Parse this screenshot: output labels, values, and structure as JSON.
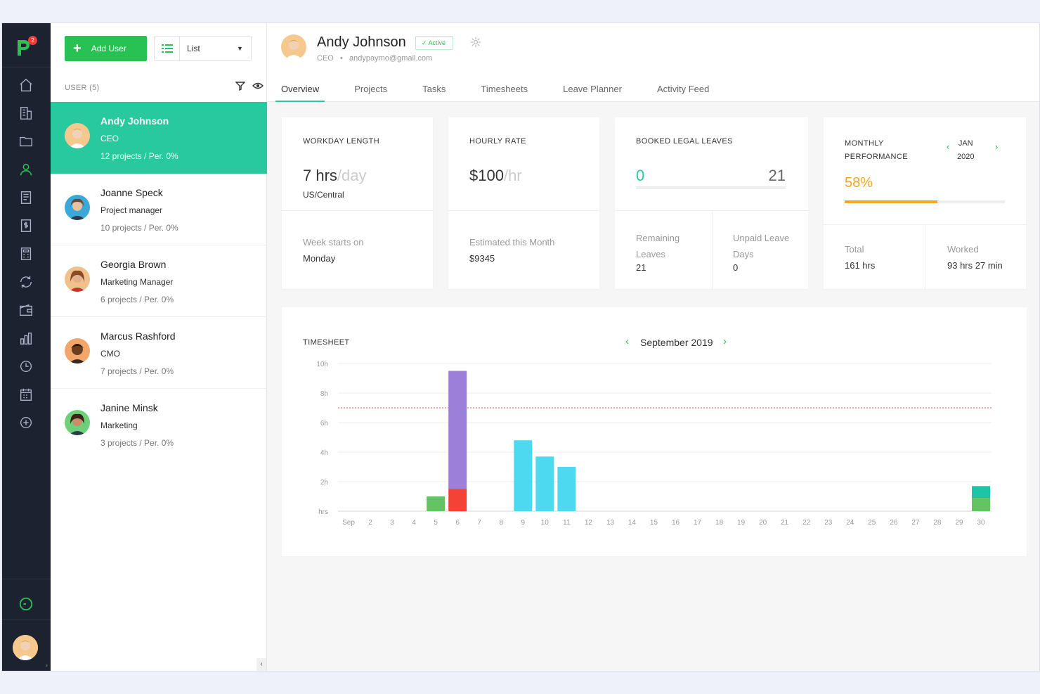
{
  "colors": {
    "accent": "#29c9a0",
    "green": "#27c253",
    "rail": "#1c2230",
    "orange": "#f5a623",
    "purple": "#9b7fd8",
    "red": "#f44336",
    "cyan": "#4dd9f0"
  },
  "logo": {
    "badge": "2"
  },
  "sidebar_icons": [
    "home-icon",
    "building-icon",
    "folder-icon",
    "user-icon",
    "invoice-icon",
    "money-icon",
    "calculator-icon",
    "sync-icon",
    "wallet-icon",
    "bar-chart-icon",
    "clock-icon",
    "calendar-icon",
    "plus-circle-icon",
    "timer-icon"
  ],
  "users_panel": {
    "add_label": "Add User",
    "view_value": "List",
    "header": "USER (5)",
    "items": [
      {
        "name": "Andy Johnson",
        "role": "CEO",
        "stats": "12 projects / Per. 0%",
        "active": true
      },
      {
        "name": "Joanne Speck",
        "role": "Project manager",
        "stats": "10 projects / Per. 0%",
        "active": false
      },
      {
        "name": "Georgia Brown",
        "role": "Marketing Manager",
        "stats": "6 projects / Per. 0%",
        "active": false
      },
      {
        "name": "Marcus Rashford",
        "role": "CMO",
        "stats": "7 projects / Per. 0%",
        "active": false
      },
      {
        "name": "Janine Minsk",
        "role": "Marketing",
        "stats": "3 projects / Per. 0%",
        "active": false
      }
    ]
  },
  "profile": {
    "name": "Andy Johnson",
    "status": "Active",
    "role": "CEO",
    "email": "andypaymo@gmail.com"
  },
  "tabs": [
    "Overview",
    "Projects",
    "Tasks",
    "Timesheets",
    "Leave Planner",
    "Activity Feed"
  ],
  "cards": {
    "workday": {
      "label": "WORKDAY LENGTH",
      "value": "7 hrs",
      "unit": "/day",
      "tz": "US/Central",
      "week_label": "Week starts on",
      "week_value": "Monday"
    },
    "rate": {
      "label": "HOURLY RATE",
      "value": "$100",
      "unit": "/hr",
      "est_label": "Estimated this Month",
      "est_value": "$9345"
    },
    "leaves": {
      "label": "BOOKED LEGAL LEAVES",
      "booked": "0",
      "total": "21",
      "remaining_label_1": "Remaining",
      "remaining_label_2": "Leaves",
      "remaining_value": "21",
      "unpaid_label_1": "Unpaid Leave",
      "unpaid_label_2": "Days",
      "unpaid_value": "0"
    },
    "performance": {
      "label_1": "MONTHLY",
      "label_2": "PERFORMANCE",
      "month": "JAN",
      "year": "2020",
      "percent_text": "58%",
      "percent": 0.58,
      "total_label": "Total",
      "total_value": "161 hrs",
      "worked_label": "Worked",
      "worked_value": "93 hrs 27 min"
    }
  },
  "timesheet": {
    "label": "TIMESHEET",
    "period": "September 2019"
  },
  "chart_data": {
    "type": "bar",
    "stacked": true,
    "categories": [
      "Sep",
      "2",
      "3",
      "4",
      "5",
      "6",
      "7",
      "8",
      "9",
      "10",
      "11",
      "12",
      "13",
      "14",
      "15",
      "16",
      "17",
      "18",
      "19",
      "20",
      "21",
      "22",
      "23",
      "24",
      "25",
      "26",
      "27",
      "28",
      "29",
      "30"
    ],
    "y_tick_labels": [
      "hrs",
      "2h",
      "4h",
      "6h",
      "8h",
      "10h"
    ],
    "ylim": [
      0,
      10
    ],
    "reference_line": 7,
    "series": [
      {
        "color": "#62c462",
        "values": [
          0,
          0,
          0,
          0,
          1,
          0,
          0,
          0,
          0,
          0,
          0,
          0,
          0,
          0,
          0,
          0,
          0,
          0,
          0,
          0,
          0,
          0,
          0,
          0,
          0,
          0,
          0,
          0,
          0,
          0.9
        ]
      },
      {
        "color": "#f44336",
        "values": [
          0,
          0,
          0,
          0,
          0,
          1.5,
          0,
          0,
          0,
          0,
          0,
          0,
          0,
          0,
          0,
          0,
          0,
          0,
          0,
          0,
          0,
          0,
          0,
          0,
          0,
          0,
          0,
          0,
          0,
          0
        ]
      },
      {
        "color": "#9b7fd8",
        "values": [
          0,
          0,
          0,
          0,
          0,
          8,
          0,
          0,
          0,
          0,
          0,
          0,
          0,
          0,
          0,
          0,
          0,
          0,
          0,
          0,
          0,
          0,
          0,
          0,
          0,
          0,
          0,
          0,
          0,
          0
        ]
      },
      {
        "color": "#4dd9f0",
        "values": [
          0,
          0,
          0,
          0,
          0,
          0,
          0,
          0,
          4.8,
          3.7,
          3,
          0,
          0,
          0,
          0,
          0,
          0,
          0,
          0,
          0,
          0,
          0,
          0,
          0,
          0,
          0,
          0,
          0,
          0,
          0
        ]
      },
      {
        "color": "#1dc4a8",
        "values": [
          0,
          0,
          0,
          0,
          0,
          0,
          0,
          0,
          0,
          0,
          0,
          0,
          0,
          0,
          0,
          0,
          0,
          0,
          0,
          0,
          0,
          0,
          0,
          0,
          0,
          0,
          0,
          0,
          0,
          0.8
        ]
      }
    ]
  }
}
